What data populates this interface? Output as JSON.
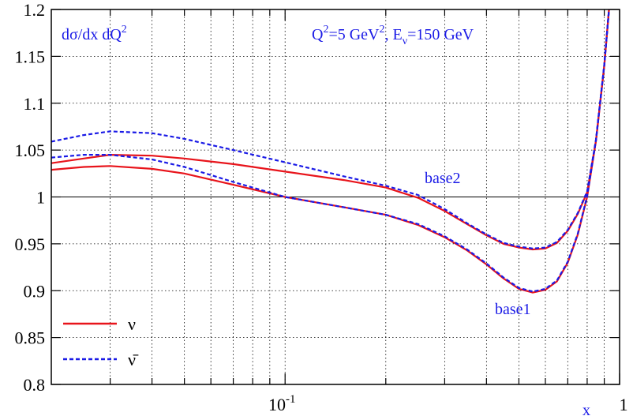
{
  "chart_data": {
    "type": "line",
    "x_label": "x",
    "xscale": "log",
    "xlim": [
      0.02,
      1
    ],
    "xticks": [
      {
        "value": 0.1,
        "label": "10",
        "sup": "-1"
      },
      1
    ],
    "xminorticks": [
      0.03,
      0.04,
      0.05,
      0.06,
      0.07,
      0.08,
      0.09,
      0.2,
      0.3,
      0.4,
      0.5,
      0.6,
      0.7,
      0.8,
      0.9
    ],
    "ylim": [
      0.8,
      1.2
    ],
    "yticks": [
      0.8,
      0.85,
      0.9,
      0.95,
      1,
      1.05,
      1.1,
      1.15,
      1.2
    ],
    "grid": true,
    "ref_line": 1,
    "legend": "lower left",
    "annotations": [
      {
        "parts": [
          {
            "text": "dσ/dx dQ"
          },
          {
            "text": "2",
            "style": "sup"
          }
        ]
      },
      {
        "parts": [
          {
            "text": "Q"
          },
          {
            "text": "2",
            "style": "sup"
          },
          {
            "text": "=5 GeV"
          },
          {
            "text": "2",
            "style": "sup"
          },
          {
            "text": ", E"
          },
          {
            "text": "ν",
            "style": "sub"
          },
          {
            "text": "=150 GeV"
          }
        ]
      }
    ],
    "curve_labels": [
      "base1",
      "base2"
    ],
    "x": [
      0.02,
      0.025,
      0.03,
      0.04,
      0.05,
      0.07,
      0.1,
      0.15,
      0.2,
      0.25,
      0.3,
      0.35,
      0.4,
      0.45,
      0.5,
      0.55,
      0.6,
      0.65,
      0.7,
      0.75,
      0.8,
      0.85,
      0.9,
      0.93
    ],
    "series": [
      {
        "name": "ν",
        "color": "#e8141b",
        "dash": false,
        "lines": [
          [
            1.029,
            1.032,
            1.033,
            1.03,
            1.025,
            1.013,
            1.0,
            0.989,
            0.981,
            0.97,
            0.957,
            0.943,
            0.928,
            0.913,
            0.902,
            0.898,
            0.901,
            0.91,
            0.93,
            0.96,
            1.0,
            1.06,
            1.14,
            1.2
          ],
          [
            1.036,
            1.041,
            1.045,
            1.044,
            1.041,
            1.035,
            1.027,
            1.018,
            1.01,
            0.999,
            0.985,
            0.971,
            0.959,
            0.95,
            0.946,
            0.944,
            0.945,
            0.951,
            0.964,
            0.982,
            1.005,
            1.06,
            1.14,
            1.2
          ]
        ]
      },
      {
        "name": "ν̄",
        "color": "#1a1ae6",
        "dash": true,
        "lines": [
          [
            1.042,
            1.045,
            1.045,
            1.04,
            1.032,
            1.016,
            1.0,
            0.989,
            0.981,
            0.971,
            0.958,
            0.944,
            0.929,
            0.914,
            0.903,
            0.899,
            0.902,
            0.911,
            0.931,
            0.961,
            1.001,
            1.061,
            1.141,
            1.2
          ],
          [
            1.059,
            1.066,
            1.07,
            1.068,
            1.062,
            1.05,
            1.037,
            1.022,
            1.012,
            1.002,
            0.987,
            0.972,
            0.96,
            0.951,
            0.947,
            0.945,
            0.946,
            0.952,
            0.965,
            0.983,
            1.006,
            1.061,
            1.141,
            1.2
          ]
        ]
      }
    ]
  }
}
